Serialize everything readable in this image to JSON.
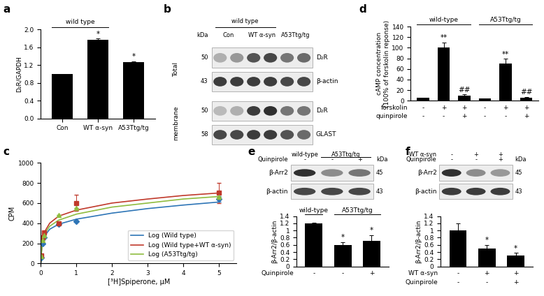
{
  "chart_data": [
    {
      "panel": "a",
      "type": "bar",
      "categories": [
        "Con",
        "WT α-syn",
        "A53Ttg/tg"
      ],
      "values": [
        1.0,
        1.77,
        1.26
      ],
      "errors": [
        0,
        0.03,
        0.03
      ],
      "significance": [
        null,
        "*",
        "*"
      ],
      "groups": [
        {
          "label": "wild type",
          "count": 2
        }
      ],
      "color": "#000000",
      "ylabel": "D₂R/GAPDH",
      "ylim": [
        0,
        2.0
      ],
      "yticks": [
        {
          "value": 0,
          "label": "0.0"
        },
        0.4,
        0.8,
        1.2,
        1.6,
        {
          "value": 2,
          "label": "2.0"
        }
      ]
    },
    {
      "panel": "b",
      "type": "blot",
      "unit": "kDa",
      "lane_rows": [
        {
          "items": [
            {
              "text": "wild type",
              "lanes": 4
            }
          ]
        },
        {
          "items": [
            {
              "text": "Con",
              "lanes": 2
            },
            {
              "text": "WT α-syn",
              "lanes": 2
            },
            {
              "text": "A53Ttg/tg",
              "lanes": 2
            }
          ]
        }
      ],
      "sections": [
        {
          "label": "Total",
          "rows": [
            {
              "band": "D₂R",
              "kda": 50,
              "intensity": [
                0.35,
                0.45,
                0.75,
                0.8,
                0.6,
                0.65
              ]
            },
            {
              "band": "β-actin",
              "kda": 43,
              "intensity": [
                0.85,
                0.85,
                0.85,
                0.85,
                0.8,
                0.8
              ]
            }
          ]
        },
        {
          "label": "membrane",
          "rows": [
            {
              "band": "D₂R",
              "kda": 50,
              "intensity": [
                0.3,
                0.35,
                0.85,
                0.9,
                0.6,
                0.6
              ]
            },
            {
              "band": "GLAST",
              "kda": 58,
              "intensity": [
                0.8,
                0.8,
                0.85,
                0.85,
                0.75,
                0.65
              ]
            }
          ]
        }
      ]
    },
    {
      "panel": "c",
      "type": "scatter",
      "xlabel": "[³H]Spiperone, μM",
      "ylabel": "CPM",
      "x": [
        0.02,
        0.05,
        0.1,
        0.5,
        1,
        5
      ],
      "xlim": [
        0,
        5.5
      ],
      "xticks": [
        0,
        1,
        2,
        3,
        4,
        5
      ],
      "ylim": [
        0,
        1000
      ],
      "yticks": [
        0,
        200,
        400,
        600,
        800,
        1000
      ],
      "legend": "lower right",
      "series": [
        {
          "name": "Log (Wild type)",
          "color": "#2e75b6",
          "marker": "diamond",
          "values": [
            60,
            200,
            260,
            390,
            420,
            640
          ],
          "errors": [
            0,
            0,
            0,
            0,
            0,
            30
          ],
          "fit_x": [
            0.005,
            0.02,
            0.05,
            0.1,
            0.25,
            0.5,
            1,
            2,
            3,
            4,
            5
          ],
          "fit_values": [
            10,
            120,
            220,
            270,
            340,
            390,
            440,
            500,
            545,
            580,
            610
          ]
        },
        {
          "name": "Log (Wild type+WT α-syn)",
          "color": "#c0392b",
          "marker": "square",
          "values": [
            80,
            260,
            310,
            400,
            600,
            700
          ],
          "errors": [
            0,
            0,
            0,
            0,
            80,
            100
          ],
          "fit_x": [
            0.005,
            0.02,
            0.05,
            0.1,
            0.25,
            0.5,
            1,
            2,
            3,
            4,
            5
          ],
          "fit_values": [
            20,
            130,
            250,
            310,
            400,
            470,
            530,
            600,
            640,
            675,
            700
          ]
        },
        {
          "name": "Log (A53Ttg/tg)",
          "color": "#8fbc3f",
          "marker": "triangle",
          "values": [
            70,
            230,
            280,
            480,
            550,
            660
          ],
          "errors": [
            0,
            0,
            0,
            0,
            0,
            0
          ],
          "fit_x": [
            0.005,
            0.02,
            0.05,
            0.1,
            0.25,
            0.5,
            1,
            2,
            3,
            4,
            5
          ],
          "fit_values": [
            15,
            125,
            240,
            290,
            370,
            430,
            490,
            560,
            600,
            640,
            665
          ]
        }
      ]
    },
    {
      "panel": "d",
      "type": "bar",
      "categories": [
        null,
        null,
        null,
        null,
        null,
        null
      ],
      "values": [
        5,
        100,
        10,
        4,
        70,
        6
      ],
      "errors": [
        0.5,
        10,
        2,
        0.5,
        9,
        1
      ],
      "significance": [
        null,
        "**",
        "##",
        null,
        "**",
        "##"
      ],
      "groups": [
        {
          "label": "wild-type",
          "count": 3
        },
        {
          "label": "A53Ttg/tg",
          "count": 3
        }
      ],
      "conditions": [
        {
          "label": "forskolin",
          "marks": [
            "-",
            "+",
            "+",
            "-",
            "+",
            "+"
          ]
        },
        {
          "label": "quinpirole",
          "marks": [
            "-",
            "-",
            "+",
            "-",
            "-",
            "+"
          ]
        }
      ],
      "color": "#000000",
      "ylabel": "cAMP concentration\n(100% of forskolin reponse)",
      "ylim": [
        0,
        140
      ],
      "yticks": [
        0,
        20,
        40,
        60,
        80,
        100,
        120,
        140
      ]
    },
    {
      "panel": "e",
      "type": "blot",
      "unit": "kDa",
      "lane_rows": [
        {
          "items": [
            {
              "text": "wild-type",
              "lanes": 1
            },
            {
              "text": "A53Ttg/tg",
              "lanes": 2
            }
          ]
        },
        {
          "label": "Quinpirole",
          "items": [
            {
              "text": "-",
              "lanes": 1
            },
            {
              "text": "-",
              "lanes": 1
            },
            {
              "text": "+",
              "lanes": 1
            }
          ]
        }
      ],
      "sections": [
        {
          "rows": [
            {
              "band": "β-Arr2",
              "kda": 45,
              "intensity": [
                0.9,
                0.5,
                0.6
              ]
            },
            {
              "band": "β-actin",
              "kda": 43,
              "intensity": [
                0.8,
                0.8,
                0.8
              ]
            }
          ]
        }
      ]
    },
    {
      "type": "bar",
      "categories": [
        null,
        null,
        null
      ],
      "values": [
        1.2,
        0.6,
        0.72
      ],
      "errors": [
        0.01,
        0.08,
        0.15
      ],
      "significance": [
        null,
        "*",
        "*"
      ],
      "groups": [
        {
          "label": "wild-type",
          "count": 1
        },
        {
          "label": "A53Ttg/tg",
          "count": 2
        }
      ],
      "conditions": [
        {
          "label": "Quinpirole",
          "marks": [
            "-",
            "-",
            "+"
          ]
        }
      ],
      "color": "#000000",
      "ylabel": "β-Arr2/β-actin",
      "ylim": [
        0,
        1.4
      ],
      "yticks": [
        0,
        0.2,
        0.4,
        0.6,
        0.8,
        1,
        1.2,
        1.4
      ]
    },
    {
      "panel": "f",
      "type": "blot",
      "unit": "kDa",
      "lane_rows": [
        {
          "label": "WT α-syn",
          "items": [
            {
              "text": "-",
              "lanes": 1
            },
            {
              "text": "+",
              "lanes": 1
            },
            {
              "text": "+",
              "lanes": 1
            }
          ]
        },
        {
          "label": "Quinpirole",
          "items": [
            {
              "text": "-",
              "lanes": 1
            },
            {
              "text": "-",
              "lanes": 1
            },
            {
              "text": "+",
              "lanes": 1
            }
          ]
        }
      ],
      "sections": [
        {
          "rows": [
            {
              "band": "β-Arr2",
              "kda": 45,
              "intensity": [
                0.9,
                0.5,
                0.45
              ]
            },
            {
              "band": "β-actin",
              "kda": 43,
              "intensity": [
                0.85,
                0.85,
                0.85
              ]
            }
          ]
        }
      ]
    },
    {
      "type": "bar",
      "categories": [
        null,
        null,
        null
      ],
      "values": [
        1.0,
        0.5,
        0.3
      ],
      "errors": [
        0.2,
        0.1,
        0.08
      ],
      "significance": [
        null,
        "*",
        "*"
      ],
      "conditions": [
        {
          "label": "WT α-syn",
          "marks": [
            "-",
            "+",
            "+"
          ]
        },
        {
          "label": "Quinpirole",
          "marks": [
            "-",
            "-",
            "+"
          ]
        }
      ],
      "color": "#000000",
      "ylabel": "β-Arr2/β-actin",
      "ylim": [
        0,
        1.4
      ],
      "yticks": [
        0,
        0.2,
        0.4,
        0.6,
        0.8,
        1,
        1.2,
        1.4
      ]
    }
  ]
}
